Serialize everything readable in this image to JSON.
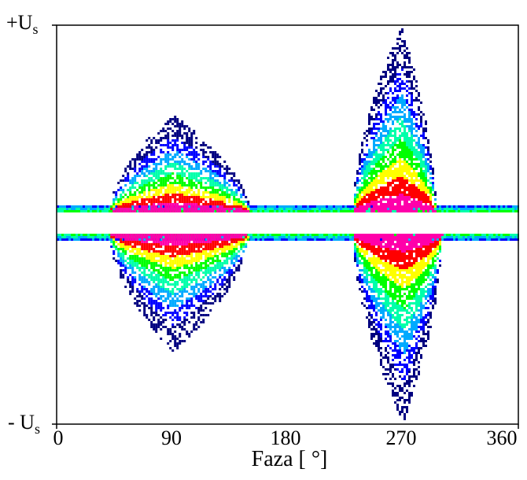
{
  "chart_data": {
    "type": "heatmap",
    "title": "",
    "xlabel": "Faza [ °]",
    "ylabel": "",
    "x_ticks": [
      "0",
      "90",
      "180",
      "270",
      "360"
    ],
    "xlim": [
      0,
      360
    ],
    "y_ticks": [
      "+U",
      "- U"
    ],
    "y_tick_subscript": "s",
    "ylim_labels": [
      "- Us",
      "+Us"
    ],
    "grid": false,
    "legend": "none",
    "color_scale": [
      "#000080",
      "#0000ff",
      "#00aaff",
      "#00ffaa",
      "#00ff00",
      "#ffff00",
      "#ff0000",
      "#ff00aa"
    ],
    "clusters": [
      {
        "polarity": "positive",
        "phase_start": 40,
        "phase_peak": 90,
        "phase_end": 150,
        "max_amplitude": 0.52
      },
      {
        "polarity": "positive",
        "phase_start": 230,
        "phase_peak": 268,
        "phase_end": 295,
        "max_amplitude": 1.0
      },
      {
        "polarity": "negative",
        "phase_start": 40,
        "phase_peak": 90,
        "phase_end": 150,
        "max_amplitude": 0.62
      },
      {
        "polarity": "negative",
        "phase_start": 230,
        "phase_peak": 270,
        "phase_end": 300,
        "max_amplitude": 1.0
      }
    ]
  }
}
